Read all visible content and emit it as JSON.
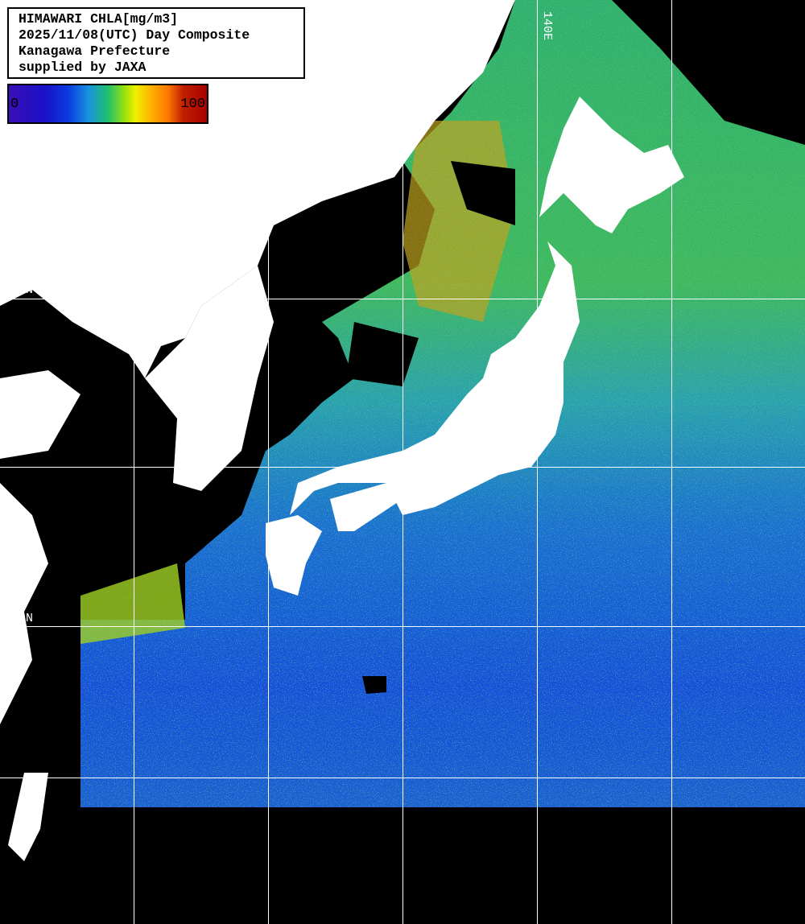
{
  "title": {
    "lines": [
      "HIMAWARI CHLA[mg/m3]",
      "2025/11/08(UTC) Day Composite",
      "Kanagawa Prefecture",
      "supplied by JAXA"
    ]
  },
  "colorbar": {
    "min_label": "0",
    "max_label": "100",
    "colors": [
      "#3a0fb5",
      "#0a3ae0",
      "#1890e0",
      "#20c070",
      "#f0f000",
      "#ff7a00",
      "#a80000"
    ]
  },
  "grid_labels": {
    "lon_140": "140E",
    "lat_40": "40N",
    "lat_30": "30N"
  },
  "colors": {
    "land": "#ffffff",
    "no_data": "#000000",
    "grid": "#ffffff"
  }
}
